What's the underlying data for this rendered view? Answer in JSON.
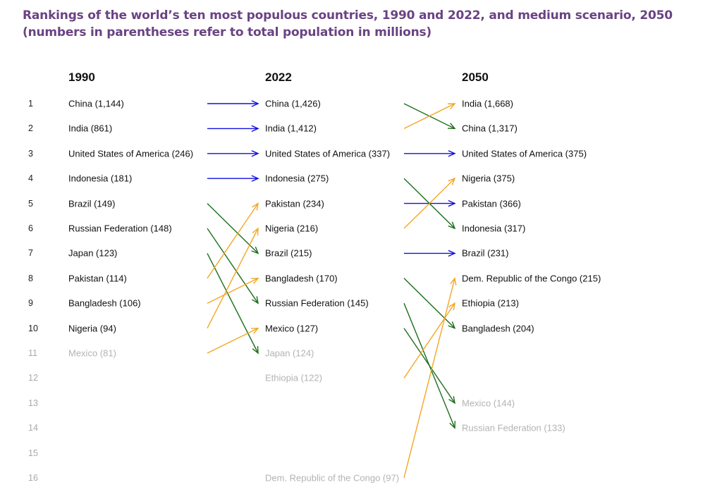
{
  "title": "Rankings of the world’s ten most populous countries, 1990 and 2022, and medium scenario, 2050 (numbers in parentheses refer to total population in millions)",
  "columns": [
    {
      "year": "1990",
      "entries": [
        {
          "rank": 1,
          "label": "China (1,144)",
          "dim": false
        },
        {
          "rank": 2,
          "label": "India (861)",
          "dim": false
        },
        {
          "rank": 3,
          "label": "United States of America (246)",
          "dim": false
        },
        {
          "rank": 4,
          "label": "Indonesia (181)",
          "dim": false
        },
        {
          "rank": 5,
          "label": "Brazil (149)",
          "dim": false
        },
        {
          "rank": 6,
          "label": "Russian Federation (148)",
          "dim": false
        },
        {
          "rank": 7,
          "label": "Japan (123)",
          "dim": false
        },
        {
          "rank": 8,
          "label": "Pakistan (114)",
          "dim": false
        },
        {
          "rank": 9,
          "label": "Bangladesh (106)",
          "dim": false
        },
        {
          "rank": 10,
          "label": "Nigeria (94)",
          "dim": false
        },
        {
          "rank": 11,
          "label": "Mexico (81)",
          "dim": true
        }
      ]
    },
    {
      "year": "2022",
      "entries": [
        {
          "rank": 1,
          "label": "China (1,426)",
          "dim": false
        },
        {
          "rank": 2,
          "label": "India (1,412)",
          "dim": false
        },
        {
          "rank": 3,
          "label": "United States of America (337)",
          "dim": false
        },
        {
          "rank": 4,
          "label": "Indonesia (275)",
          "dim": false
        },
        {
          "rank": 5,
          "label": "Pakistan (234)",
          "dim": false
        },
        {
          "rank": 6,
          "label": "Nigeria (216)",
          "dim": false
        },
        {
          "rank": 7,
          "label": "Brazil (215)",
          "dim": false
        },
        {
          "rank": 8,
          "label": "Bangladesh (170)",
          "dim": false
        },
        {
          "rank": 9,
          "label": "Russian Federation (145)",
          "dim": false
        },
        {
          "rank": 10,
          "label": "Mexico (127)",
          "dim": false
        },
        {
          "rank": 11,
          "label": "Japan (124)",
          "dim": true
        },
        {
          "rank": 12,
          "label": "Ethiopia (122)",
          "dim": true
        },
        {
          "rank": 16,
          "label": "Dem. Republic of the Congo (97)",
          "dim": true
        }
      ]
    },
    {
      "year": "2050",
      "entries": [
        {
          "rank": 1,
          "label": "India (1,668)",
          "dim": false
        },
        {
          "rank": 2,
          "label": "China (1,317)",
          "dim": false
        },
        {
          "rank": 3,
          "label": "United States of America (375)",
          "dim": false
        },
        {
          "rank": 4,
          "label": "Nigeria (375)",
          "dim": false
        },
        {
          "rank": 5,
          "label": "Pakistan (366)",
          "dim": false
        },
        {
          "rank": 6,
          "label": "Indonesia (317)",
          "dim": false
        },
        {
          "rank": 7,
          "label": "Brazil (231)",
          "dim": false
        },
        {
          "rank": 8,
          "label": "Dem. Republic of the Congo (215)",
          "dim": false
        },
        {
          "rank": 9,
          "label": "Ethiopia (213)",
          "dim": false
        },
        {
          "rank": 10,
          "label": "Bangladesh (204)",
          "dim": false
        },
        {
          "rank": 13,
          "label": "Mexico (144)",
          "dim": true
        },
        {
          "rank": 14,
          "label": "Russian Federation (133)",
          "dim": true
        }
      ]
    }
  ],
  "rank_labels": [
    "1",
    "2",
    "3",
    "4",
    "5",
    "6",
    "7",
    "8",
    "9",
    "10",
    "11",
    "12",
    "13",
    "14",
    "15",
    "16"
  ],
  "dim_rank_from": 11,
  "colors": {
    "title": "#6a4383",
    "same_rank": "#1010e0",
    "rank_up": "#f5a623",
    "rank_down": "#1e6e1e",
    "dim_text": "#b3b3b3"
  },
  "transitions": [
    {
      "interval": "1990-2022",
      "from": 1,
      "to": 1,
      "kind": "same_rank"
    },
    {
      "interval": "1990-2022",
      "from": 2,
      "to": 2,
      "kind": "same_rank"
    },
    {
      "interval": "1990-2022",
      "from": 3,
      "to": 3,
      "kind": "same_rank"
    },
    {
      "interval": "1990-2022",
      "from": 4,
      "to": 4,
      "kind": "same_rank"
    },
    {
      "interval": "1990-2022",
      "from": 5,
      "to": 7,
      "kind": "rank_down"
    },
    {
      "interval": "1990-2022",
      "from": 6,
      "to": 9,
      "kind": "rank_down"
    },
    {
      "interval": "1990-2022",
      "from": 7,
      "to": 11,
      "kind": "rank_down"
    },
    {
      "interval": "1990-2022",
      "from": 8,
      "to": 5,
      "kind": "rank_up"
    },
    {
      "interval": "1990-2022",
      "from": 9,
      "to": 8,
      "kind": "rank_up"
    },
    {
      "interval": "1990-2022",
      "from": 10,
      "to": 6,
      "kind": "rank_up"
    },
    {
      "interval": "1990-2022",
      "from": 11,
      "to": 10,
      "kind": "rank_up"
    },
    {
      "interval": "2022-2050",
      "from": 1,
      "to": 2,
      "kind": "rank_down"
    },
    {
      "interval": "2022-2050",
      "from": 2,
      "to": 1,
      "kind": "rank_up"
    },
    {
      "interval": "2022-2050",
      "from": 3,
      "to": 3,
      "kind": "same_rank"
    },
    {
      "interval": "2022-2050",
      "from": 4,
      "to": 6,
      "kind": "rank_down"
    },
    {
      "interval": "2022-2050",
      "from": 5,
      "to": 5,
      "kind": "same_rank"
    },
    {
      "interval": "2022-2050",
      "from": 6,
      "to": 4,
      "kind": "rank_up"
    },
    {
      "interval": "2022-2050",
      "from": 7,
      "to": 7,
      "kind": "same_rank"
    },
    {
      "interval": "2022-2050",
      "from": 8,
      "to": 10,
      "kind": "rank_down"
    },
    {
      "interval": "2022-2050",
      "from": 9,
      "to": 14,
      "kind": "rank_down"
    },
    {
      "interval": "2022-2050",
      "from": 10,
      "to": 13,
      "kind": "rank_down"
    },
    {
      "interval": "2022-2050",
      "from": 12,
      "to": 9,
      "kind": "rank_up"
    },
    {
      "interval": "2022-2050",
      "from": 16,
      "to": 8,
      "kind": "rank_up"
    }
  ]
}
